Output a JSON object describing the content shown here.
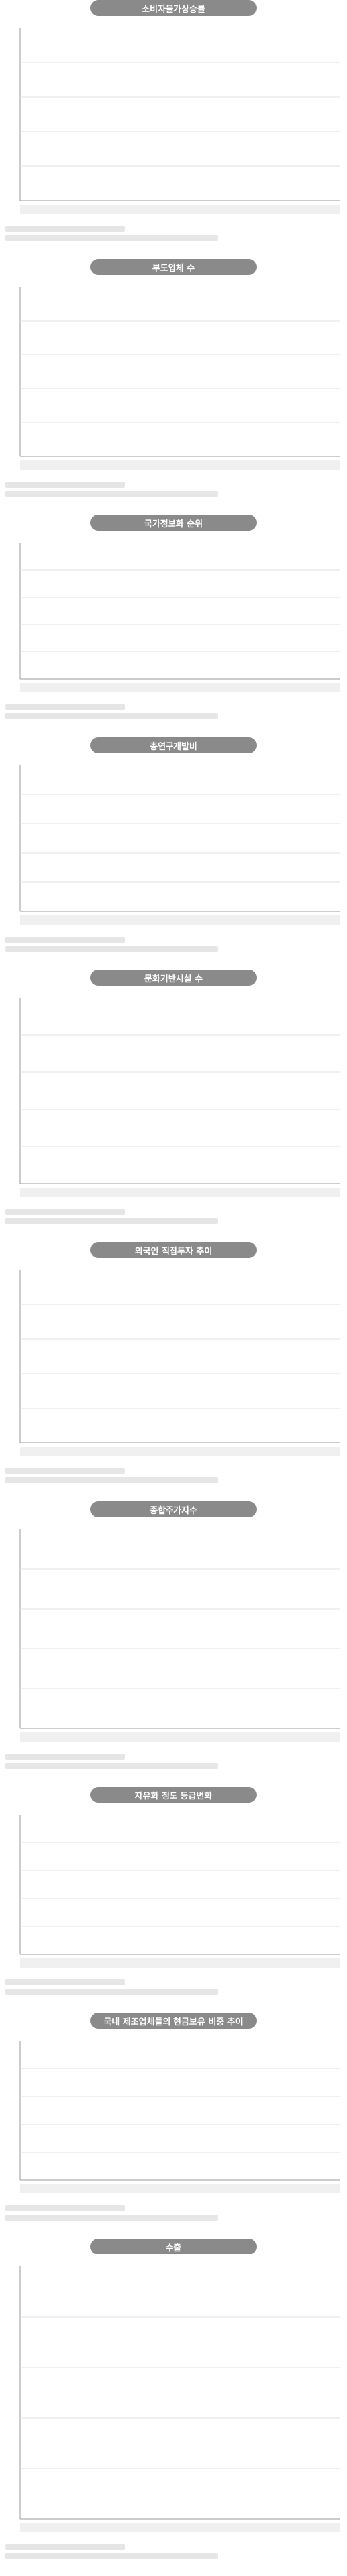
{
  "panels": [
    {
      "id": "p1",
      "title": "소비자물가상승률",
      "theme": "bar",
      "color": "#4aa8d8"
    },
    {
      "id": "p2",
      "title": "부도업체 수",
      "theme": "bar",
      "color": "#d23b3b"
    },
    {
      "id": "p3",
      "title": "국가정보화 순위",
      "theme": "line",
      "color": "#4aa8d8"
    },
    {
      "id": "p4",
      "title": "총연구개발비",
      "theme": "bar",
      "color": "#3f9aa8"
    },
    {
      "id": "p5",
      "title": "문화기반시설 수",
      "theme": "stacked",
      "color": "#3f5fa8"
    },
    {
      "id": "p6",
      "title": "외국인 직접투자 추이",
      "theme": "bar",
      "color": "#e06bb0"
    },
    {
      "id": "p7",
      "title": "종합주가지수",
      "theme": "bar",
      "color": "#d23b3b"
    },
    {
      "id": "p8",
      "title": "자유화 정도 등급변화",
      "theme": "bar",
      "color": "#4aa8d8"
    },
    {
      "id": "p9",
      "title": "국내 제조업체들의 현금보유 비중 추이",
      "theme": "line",
      "color": "#d23b3b"
    },
    {
      "id": "p10",
      "title": "수출",
      "theme": "bar",
      "color": "#3f5fa8"
    }
  ],
  "chart_data": [
    {
      "type": "bar",
      "title": "소비자물가상승률"
    },
    {
      "type": "bar",
      "title": "부도업체 수"
    },
    {
      "type": "line",
      "title": "국가정보화 순위"
    },
    {
      "type": "bar",
      "title": "총연구개발비"
    },
    {
      "type": "bar",
      "title": "문화기반시설 수"
    },
    {
      "type": "bar",
      "title": "외국인 직접투자 추이"
    },
    {
      "type": "bar",
      "title": "종합주가지수"
    },
    {
      "type": "bar",
      "title": "자유화 정도 등급변화"
    },
    {
      "type": "line",
      "title": "국내 제조업체들의 현금보유 비중 추이"
    },
    {
      "type": "bar",
      "title": "수출"
    }
  ]
}
